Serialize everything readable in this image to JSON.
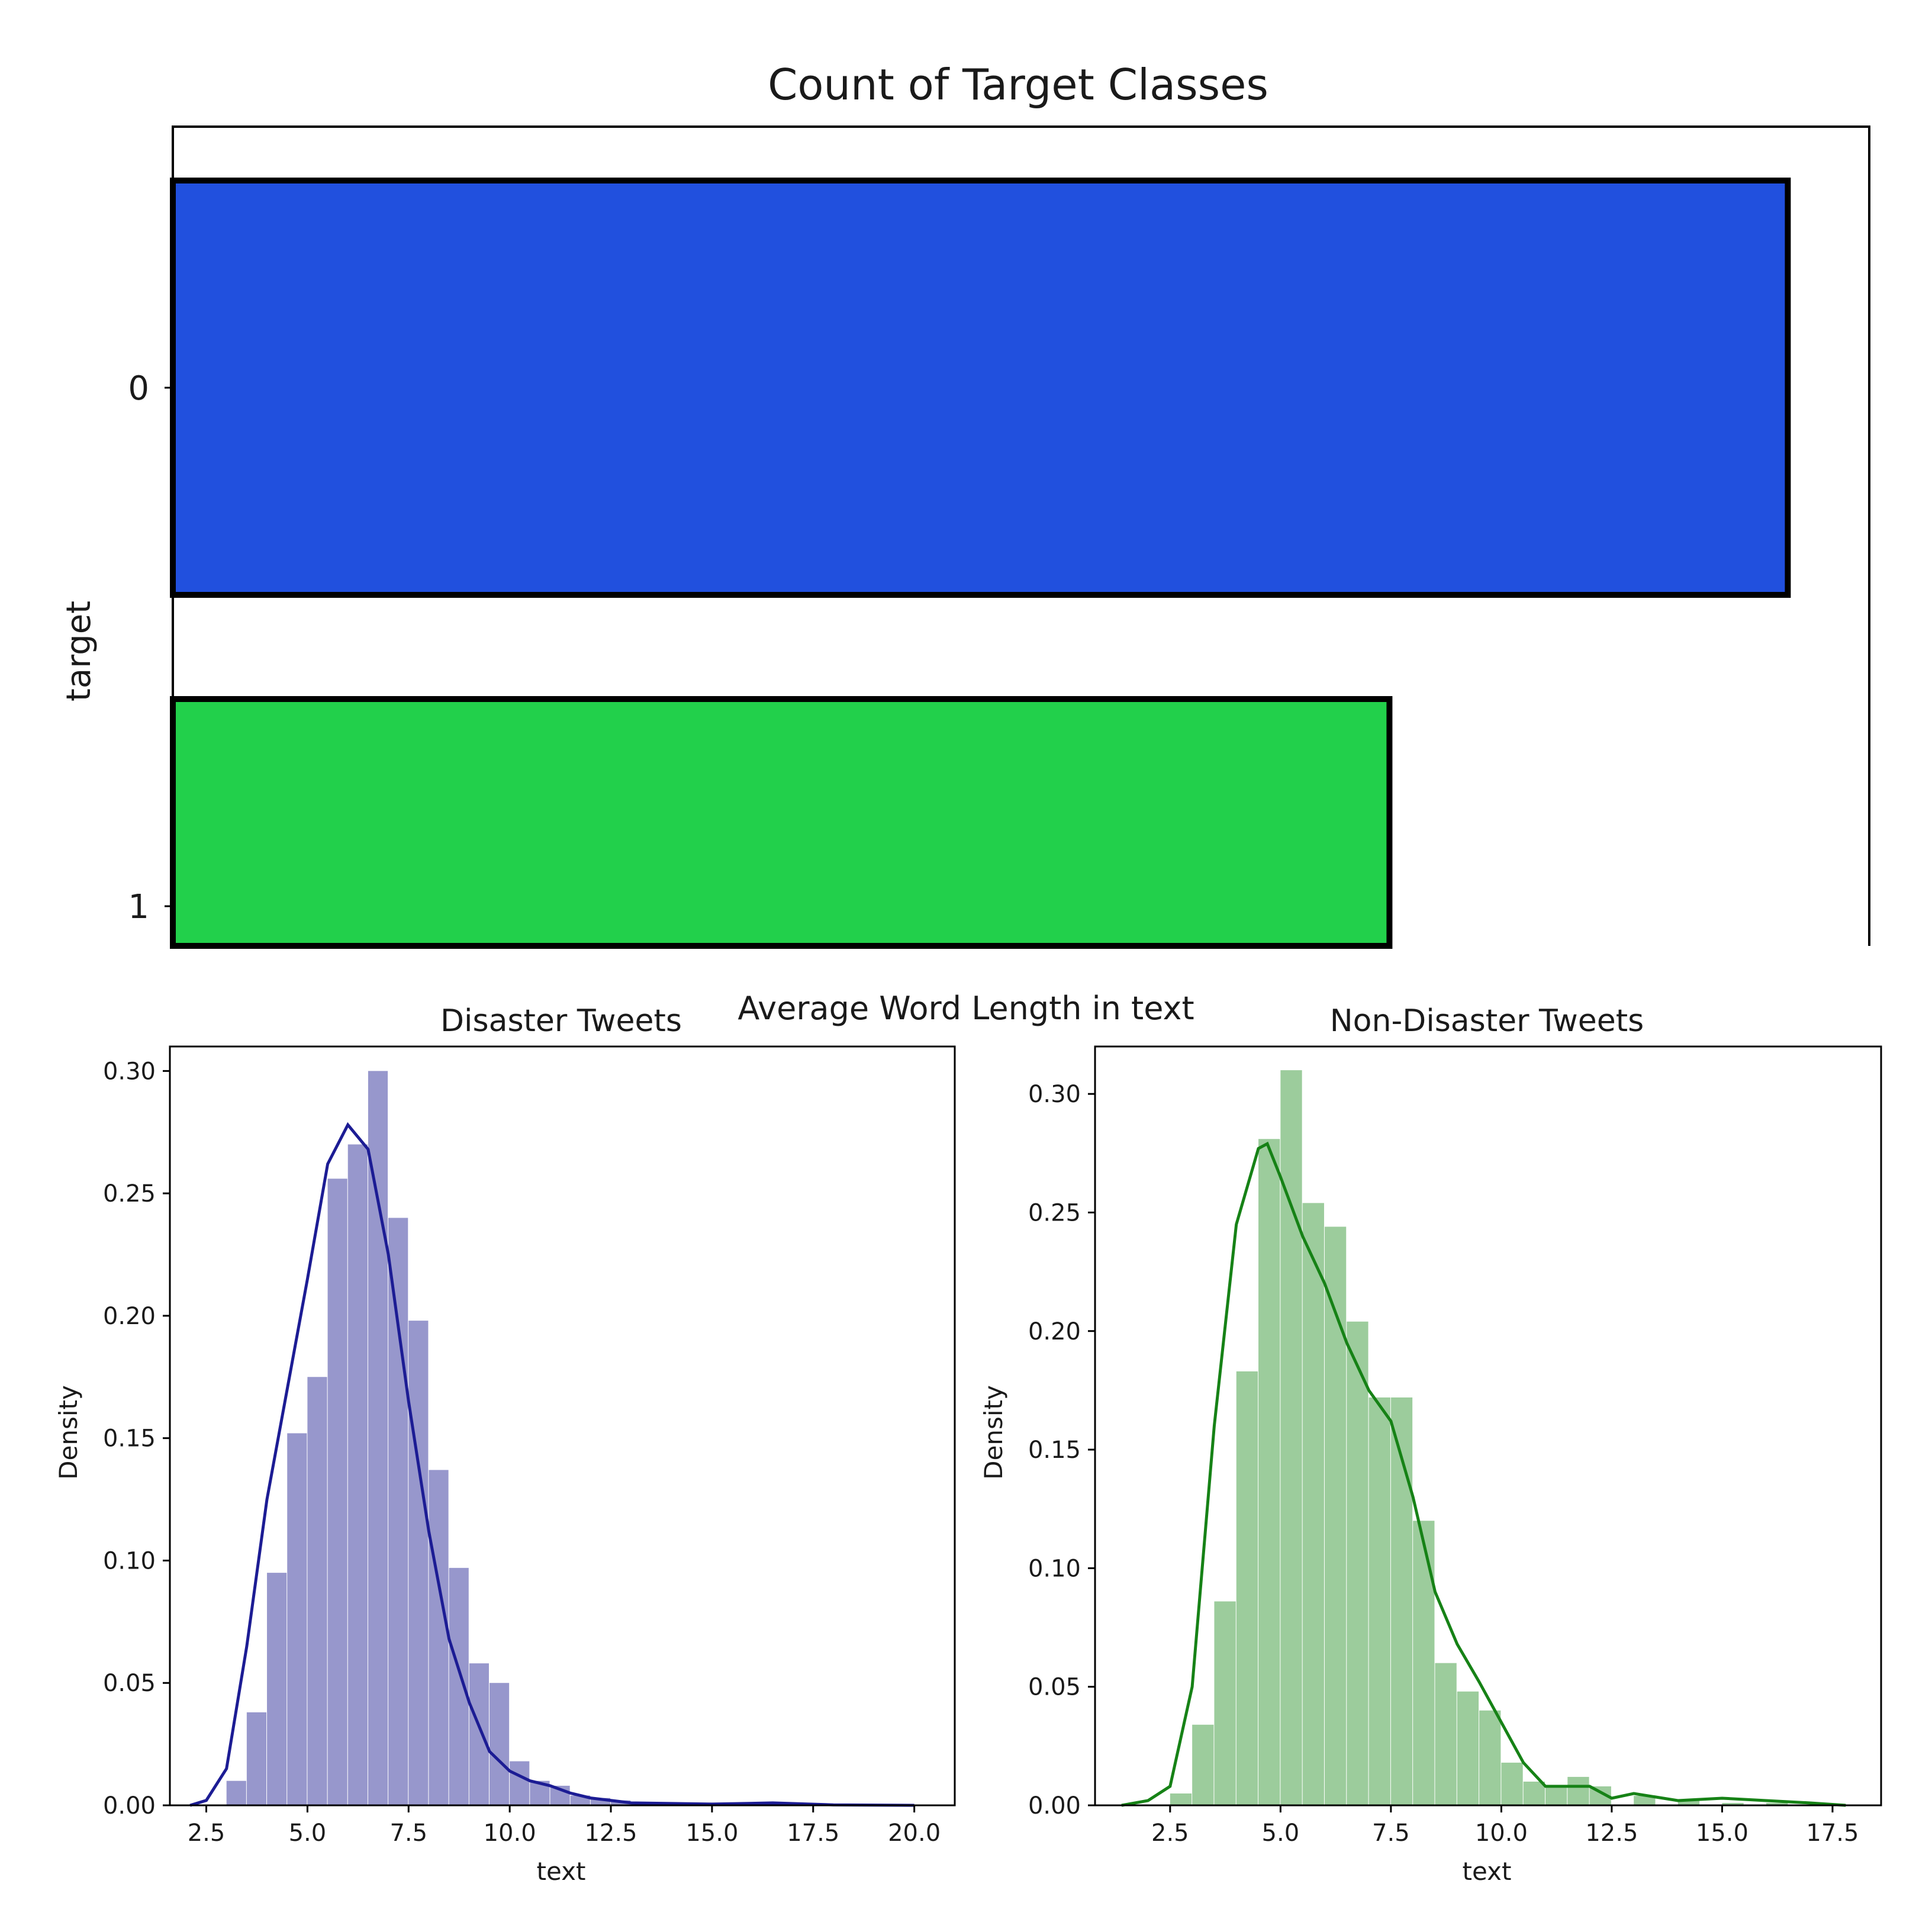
{
  "chart_data": [
    {
      "type": "bar",
      "orientation": "horizontal",
      "title": "Count of Target Classes",
      "xlabel": "",
      "ylabel": "target",
      "categories": [
        "0",
        "1"
      ],
      "values": [
        4342,
        3271
      ],
      "colors": [
        "#2150de",
        "#22d04b"
      ],
      "edgecolor": "#000000",
      "xlim": [
        0,
        4561
      ],
      "note_clipped": true,
      "grid": false
    },
    {
      "type": "histogram",
      "figure_title": "Average Word Length in text",
      "title": "Disaster Tweets",
      "xlabel": "text",
      "ylabel": "Density",
      "xlim": [
        1.6,
        21.0
      ],
      "ylim": [
        0.0,
        0.31
      ],
      "xticks": [
        2.5,
        5.0,
        7.5,
        10.0,
        12.5,
        15.0,
        17.5,
        20.0
      ],
      "yticks": [
        0.0,
        0.05,
        0.1,
        0.15,
        0.2,
        0.25,
        0.3
      ],
      "bar_color": "#9797cc",
      "kde_color": "#1c1c94",
      "bin_width": 0.5,
      "bins_x": [
        3.0,
        3.5,
        4.0,
        4.5,
        5.0,
        5.5,
        6.0,
        6.5,
        7.0,
        7.5,
        8.0,
        8.5,
        9.0,
        9.5,
        10.0,
        10.5,
        11.0,
        11.5,
        12.0,
        12.5,
        13.0
      ],
      "bins_density": [
        0.01,
        0.038,
        0.095,
        0.152,
        0.175,
        0.256,
        0.27,
        0.3,
        0.24,
        0.198,
        0.137,
        0.097,
        0.058,
        0.05,
        0.018,
        0.01,
        0.008,
        0.004,
        0.003,
        0.002,
        0.001
      ],
      "kde_x": [
        2.1,
        2.5,
        3.0,
        3.5,
        4.0,
        4.5,
        5.0,
        5.5,
        6.0,
        6.5,
        7.0,
        7.5,
        8.0,
        8.5,
        9.0,
        9.5,
        10.0,
        10.5,
        11.0,
        11.5,
        12.0,
        13.0,
        15.0,
        16.5,
        18.0,
        20.0
      ],
      "kde_y": [
        0.0,
        0.002,
        0.015,
        0.065,
        0.125,
        0.17,
        0.215,
        0.262,
        0.278,
        0.268,
        0.225,
        0.165,
        0.112,
        0.068,
        0.042,
        0.022,
        0.014,
        0.01,
        0.008,
        0.005,
        0.003,
        0.001,
        0.0005,
        0.001,
        0.0002,
        0.0
      ]
    },
    {
      "type": "histogram",
      "title": "Non-Disaster Tweets",
      "xlabel": "text",
      "ylabel": "Density",
      "xlim": [
        0.8,
        18.6
      ],
      "ylim": [
        0.0,
        0.32
      ],
      "xticks": [
        2.5,
        5.0,
        7.5,
        10.0,
        12.5,
        15.0,
        17.5
      ],
      "yticks": [
        0.0,
        0.05,
        0.1,
        0.15,
        0.2,
        0.25,
        0.3
      ],
      "bar_color": "#9ccc9c",
      "kde_color": "#168216",
      "bin_width": 0.5,
      "bins_x": [
        2.5,
        3.0,
        3.5,
        4.0,
        4.5,
        5.0,
        5.5,
        6.0,
        6.5,
        7.0,
        7.5,
        8.0,
        8.5,
        9.0,
        9.5,
        10.0,
        10.5,
        11.0,
        11.5,
        12.0,
        13.0,
        14.0,
        15.0,
        16.0
      ],
      "bins_density": [
        0.005,
        0.034,
        0.086,
        0.183,
        0.281,
        0.31,
        0.254,
        0.244,
        0.204,
        0.172,
        0.172,
        0.12,
        0.06,
        0.048,
        0.04,
        0.018,
        0.01,
        0.008,
        0.012,
        0.008,
        0.004,
        0.002,
        0.001,
        0.001
      ],
      "kde_x": [
        1.4,
        2.0,
        2.5,
        3.0,
        3.5,
        4.0,
        4.5,
        4.7,
        5.0,
        5.5,
        6.0,
        6.5,
        7.0,
        7.5,
        8.0,
        8.5,
        9.0,
        9.5,
        10.0,
        10.5,
        11.0,
        11.5,
        12.0,
        12.5,
        13.0,
        14.0,
        15.0,
        16.0,
        17.0,
        17.8
      ],
      "kde_y": [
        0.0,
        0.002,
        0.008,
        0.05,
        0.16,
        0.245,
        0.277,
        0.279,
        0.265,
        0.24,
        0.22,
        0.195,
        0.175,
        0.162,
        0.13,
        0.09,
        0.068,
        0.052,
        0.035,
        0.018,
        0.008,
        0.008,
        0.008,
        0.003,
        0.005,
        0.002,
        0.003,
        0.002,
        0.001,
        0.0
      ]
    }
  ]
}
